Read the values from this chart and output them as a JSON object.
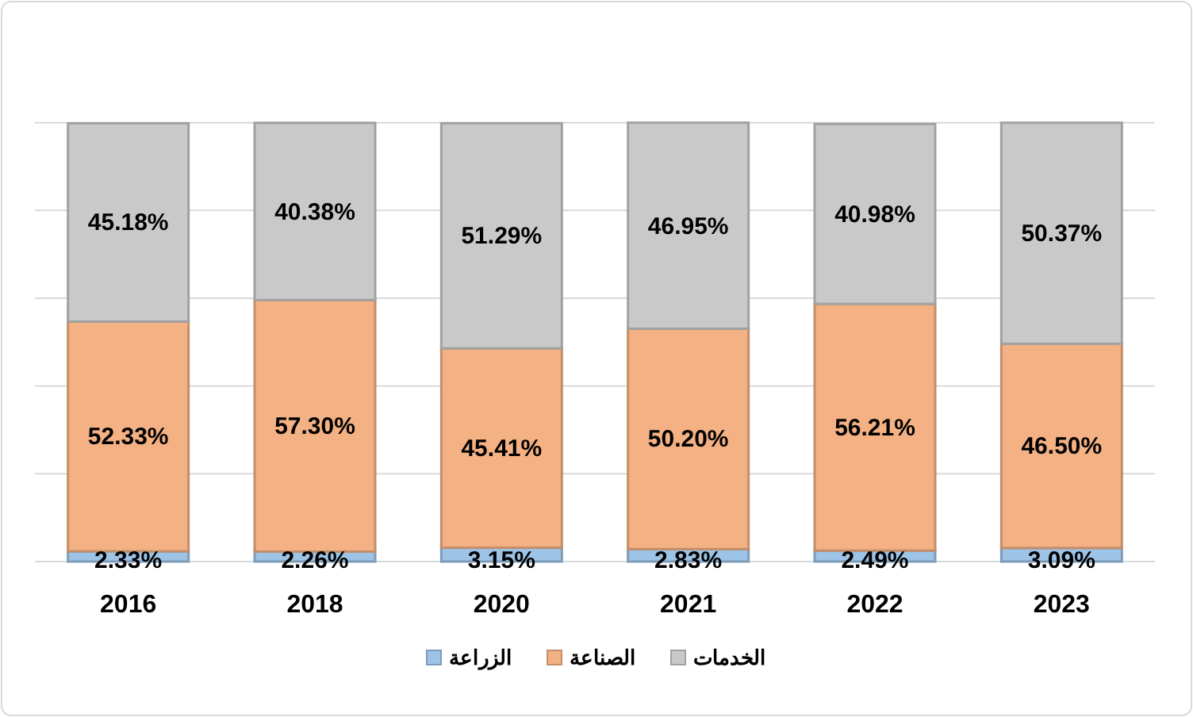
{
  "chart_data": {
    "type": "bar",
    "stacked": true,
    "categories": [
      "2016",
      "2018",
      "2020",
      "2021",
      "2022",
      "2023"
    ],
    "series": [
      {
        "name": "الزراعة",
        "color": "#9dc3e6",
        "values": [
          2.33,
          2.26,
          3.15,
          2.83,
          2.49,
          3.09
        ],
        "value_labels": [
          "2.33%",
          "2.26%",
          "3.15%",
          "2.83%",
          "2.49%",
          "3.09%"
        ]
      },
      {
        "name": "الصناعة",
        "color": "#f4b183",
        "values": [
          52.33,
          57.3,
          45.41,
          50.2,
          56.21,
          46.5
        ],
        "value_labels": [
          "52.33%",
          "57.30%",
          "45.41%",
          "50.20%",
          "56.21%",
          "46.50%"
        ]
      },
      {
        "name": "الخدمات",
        "color": "#c9c9c9",
        "values": [
          45.18,
          40.38,
          51.29,
          46.95,
          40.98,
          50.37
        ],
        "value_labels": [
          "45.18%",
          "40.38%",
          "51.29%",
          "46.95%",
          "40.98%",
          "50.37%"
        ]
      }
    ],
    "tick_labels": "x",
    "grid": "y",
    "legend": "bottom"
  }
}
